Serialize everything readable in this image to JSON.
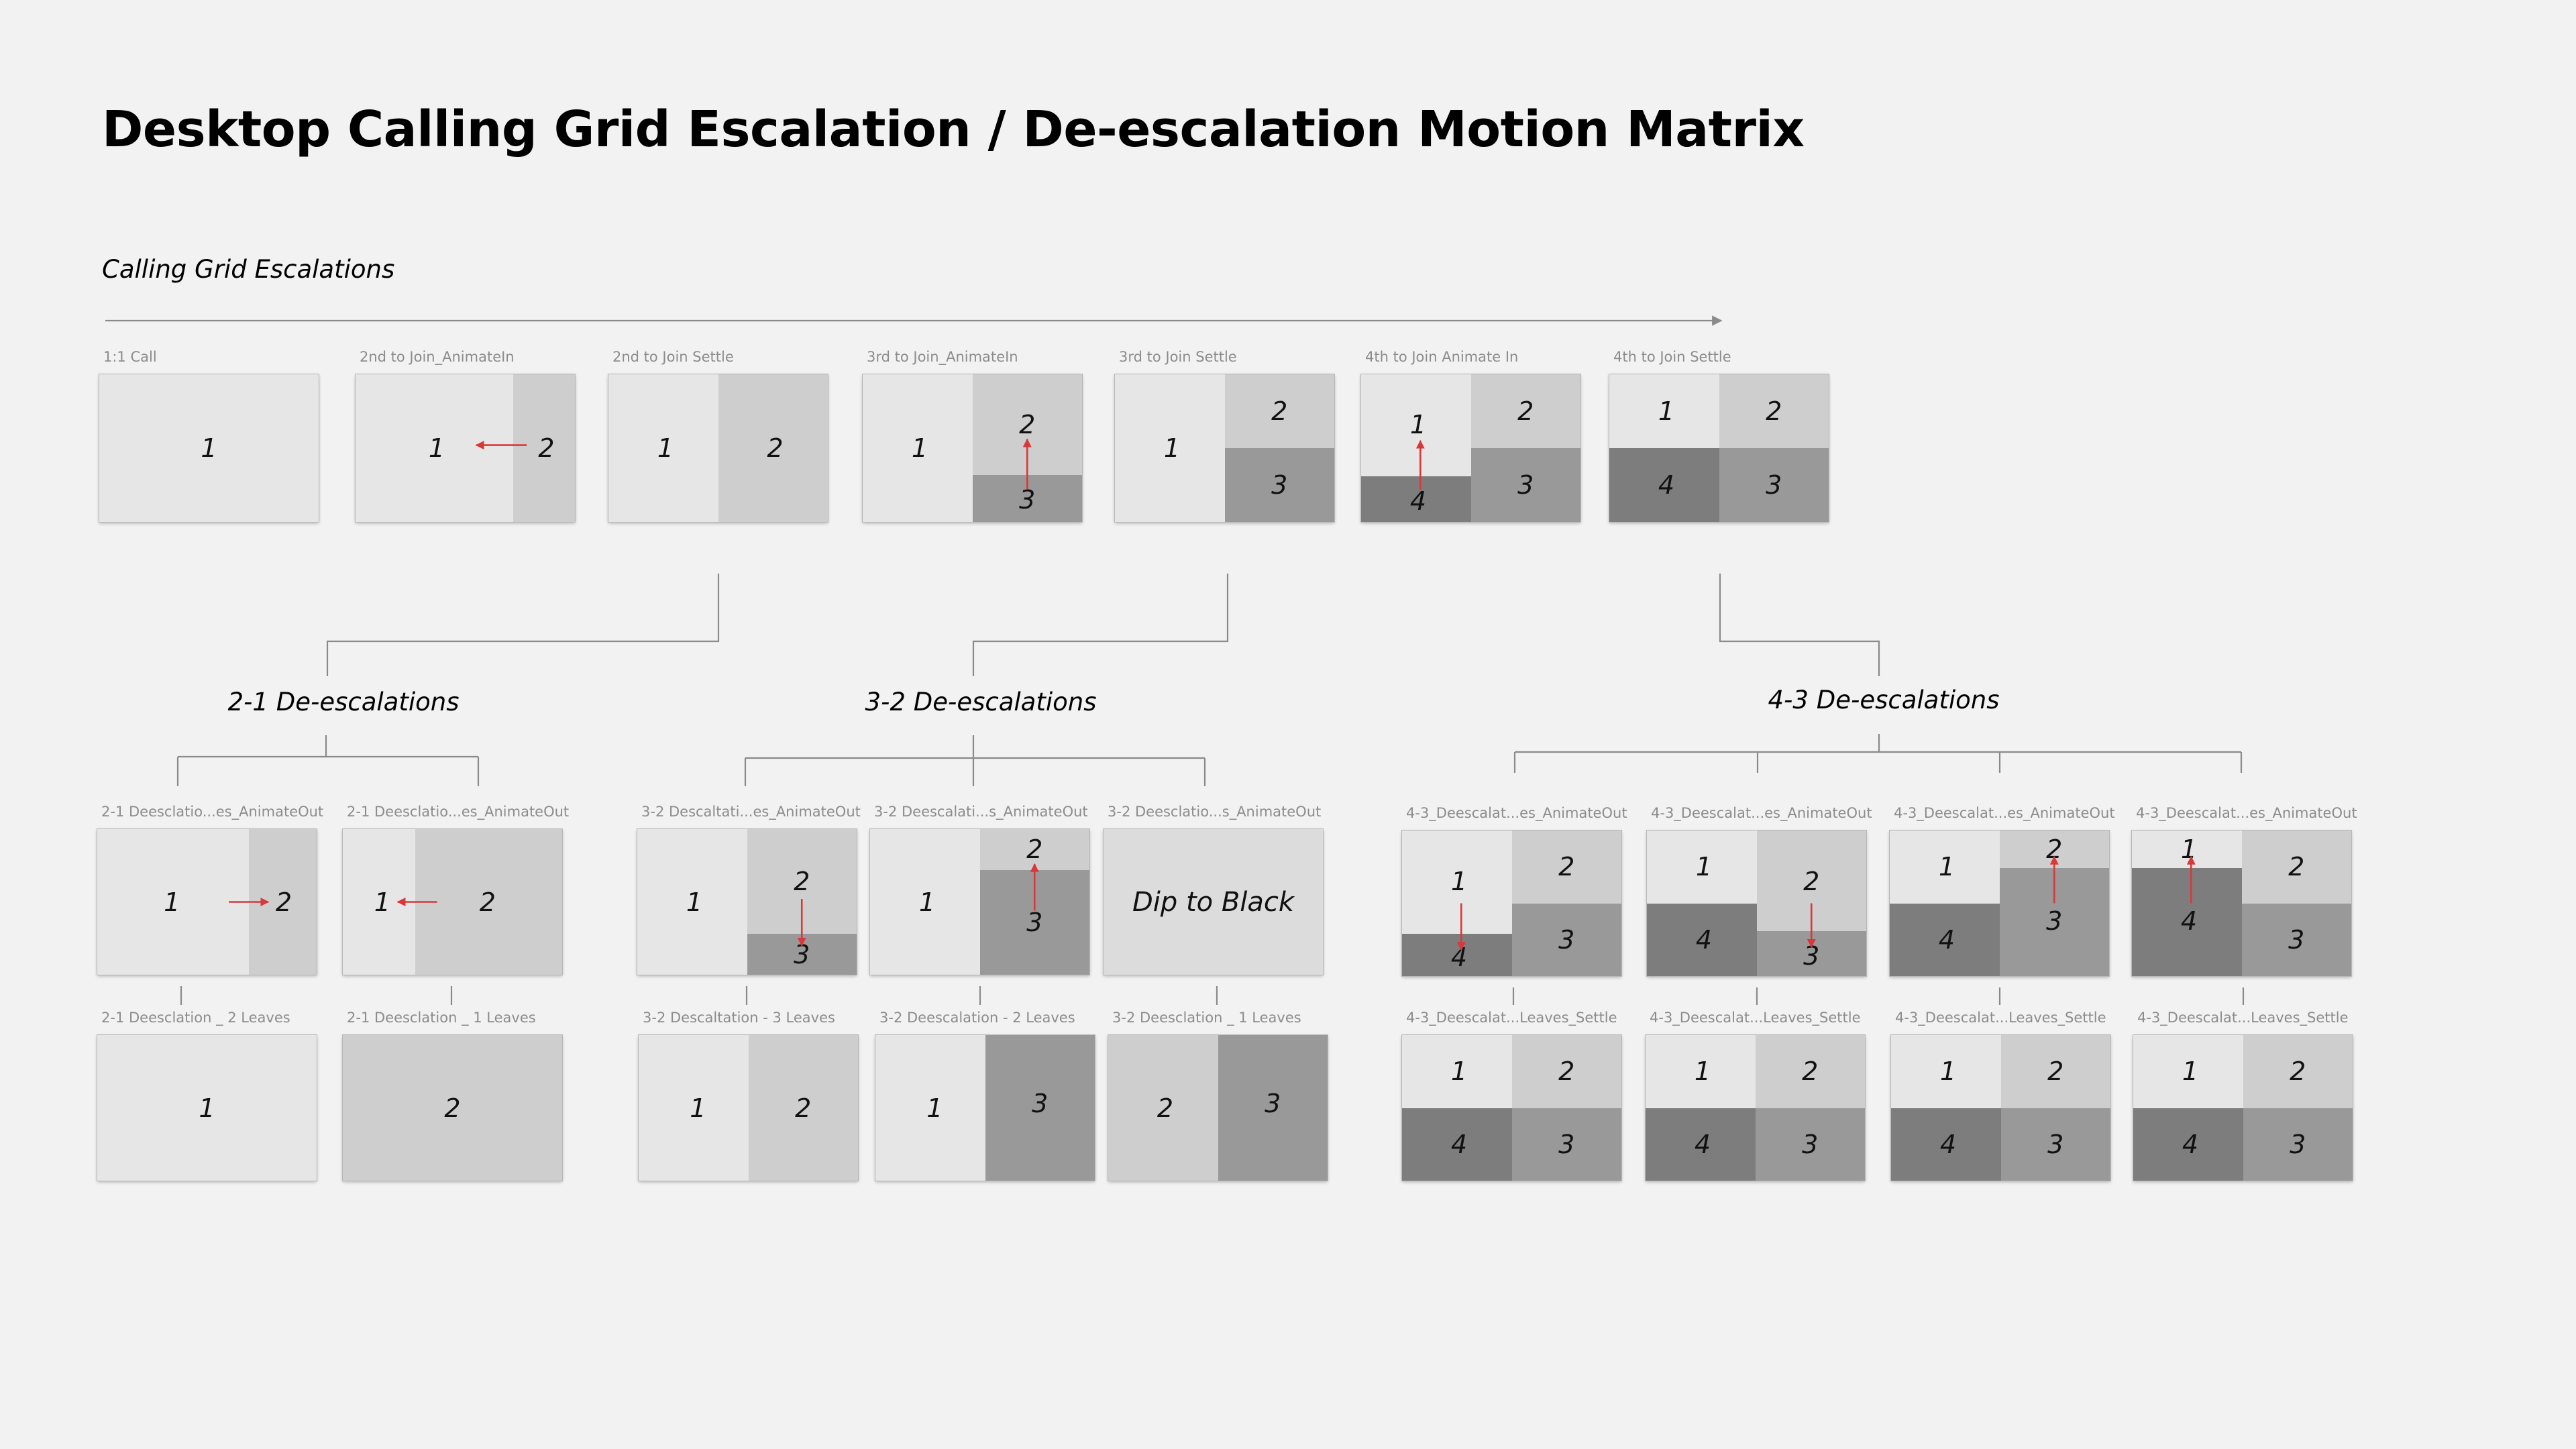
{
  "title": "Desktop Calling Grid Escalation / De-escalation Motion Matrix",
  "escalations": {
    "heading": "Calling Grid Escalations",
    "frames": [
      {
        "label": "1:1 Call"
      },
      {
        "label": "2nd to Join_AnimateIn"
      },
      {
        "label": "2nd to Join Settle"
      },
      {
        "label": "3rd to Join_AnimateIn"
      },
      {
        "label": "3rd to Join Settle"
      },
      {
        "label": "4th to Join Animate In"
      },
      {
        "label": "4th to Join Settle"
      }
    ]
  },
  "deescalation_21": {
    "heading": "2-1 De-escalations",
    "animate": [
      {
        "label": "2-1 Deesclatio...es_AnimateOut"
      },
      {
        "label": "2-1 Deesclatio...es_AnimateOut"
      }
    ],
    "settle": [
      {
        "label": "2-1 Deesclation _ 2 Leaves"
      },
      {
        "label": "2-1 Deesclation _ 1 Leaves"
      }
    ]
  },
  "deescalation_32": {
    "heading": "3-2 De-escalations",
    "animate": [
      {
        "label": "3-2 Descaltati...es_AnimateOut"
      },
      {
        "label": "3-2 Deescalati...s_AnimateOut"
      },
      {
        "label": "3-2 Deesclatio...s_AnimateOut",
        "text": "Dip to Black"
      }
    ],
    "settle": [
      {
        "label": "3-2 Descaltation - 3 Leaves"
      },
      {
        "label": "3-2 Deescalation - 2 Leaves"
      },
      {
        "label": "3-2 Deesclation _ 1 Leaves"
      }
    ]
  },
  "deescalation_43": {
    "heading": "4-3 De-escalations",
    "animate": [
      {
        "label": "4-3_Deescalat...es_AnimateOut"
      },
      {
        "label": "4-3_Deescalat...es_AnimateOut"
      },
      {
        "label": "4-3_Deescalat...es_AnimateOut"
      },
      {
        "label": "4-3_Deescalat...es_AnimateOut"
      }
    ],
    "settle": [
      {
        "label": "4-3_Deescalat...Leaves_Settle"
      },
      {
        "label": "4-3_Deescalat...Leaves_Settle"
      },
      {
        "label": "4-3_Deescalat...Leaves_Settle"
      },
      {
        "label": "4-3_Deescalat...Leaves_Settle"
      }
    ]
  },
  "participants": [
    "1",
    "2",
    "3",
    "4"
  ],
  "colors": {
    "background": "#f2f2f2",
    "tile_1": "#e6e6e6",
    "tile_2": "#cecece",
    "tile_3": "#999999",
    "tile_4": "#7d7d7d",
    "motion_arrow": "#d9383a",
    "connector": "#8a8a8a"
  }
}
